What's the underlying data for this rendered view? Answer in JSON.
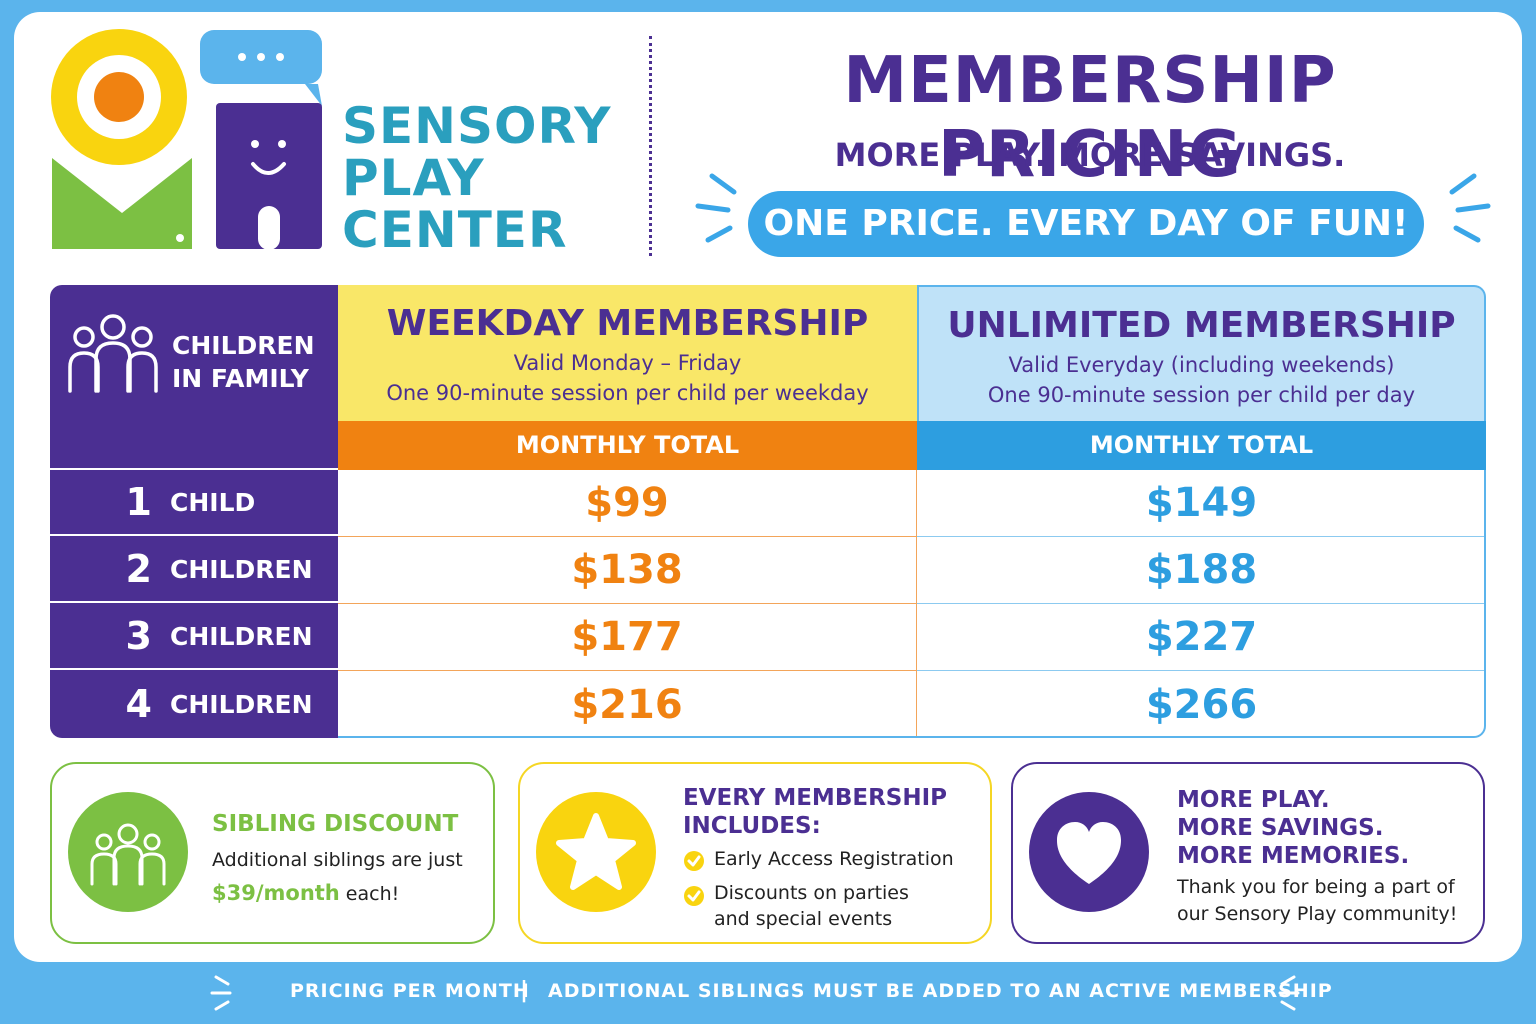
{
  "brand": {
    "line1": "SENSORY",
    "line2": "PLAY",
    "line3": "CENTER",
    "logo_icon": "sensory-play-logo-icon"
  },
  "header": {
    "title": "MEMBERSHIP PRICING",
    "subtitle": "MORE PLAY. MORE SAVINGS.",
    "pill": "ONE PRICE. EVERY DAY OF FUN!"
  },
  "table": {
    "left_header": {
      "label_line1": "CHILDREN",
      "label_line2": "IN FAMILY",
      "icon": "family-icon"
    },
    "weekday": {
      "title": "WEEKDAY MEMBERSHIP",
      "line1": "Valid Monday – Friday",
      "line2": "One 90-minute session per child per weekday",
      "bar": "MONTHLY TOTAL",
      "color": "#f08211"
    },
    "unlimited": {
      "title": "UNLIMITED MEMBERSHIP",
      "line1": "Valid Everyday (including weekends)",
      "line2": "One 90-minute session per child per day",
      "bar": "MONTHLY TOTAL",
      "color": "#2d9ee0"
    },
    "rows": [
      {
        "num": "1",
        "label": "CHILD",
        "weekday": "$99",
        "unlimited": "$149"
      },
      {
        "num": "2",
        "label": "CHILDREN",
        "weekday": "$138",
        "unlimited": "$188"
      },
      {
        "num": "3",
        "label": "CHILDREN",
        "weekday": "$177",
        "unlimited": "$227"
      },
      {
        "num": "4",
        "label": "CHILDREN",
        "weekday": "$216",
        "unlimited": "$266"
      }
    ]
  },
  "boxes": {
    "sibling": {
      "title": "SIBLING DISCOUNT",
      "text1": "Additional siblings are just",
      "price": "$39/month",
      "text2": " each!",
      "icon": "family-icon"
    },
    "includes": {
      "title_line1": "EVERY MEMBERSHIP",
      "title_line2": "INCLUDES:",
      "item1": "Early Access Registration",
      "item2_line1": "Discounts on parties",
      "item2_line2": "and special events",
      "icon": "star-icon"
    },
    "memories": {
      "line1": "MORE PLAY.",
      "line2": "MORE SAVINGS.",
      "line3": "MORE MEMORIES.",
      "text1": "Thank you for being a part of",
      "text2": "our Sensory Play community!",
      "icon": "heart-icon"
    }
  },
  "footer": {
    "left": "PRICING PER MONTH",
    "separator": "|",
    "right": "ADDITIONAL SIBLINGS MUST BE ADDED TO AN ACTIVE MEMBERSHIP"
  },
  "colors": {
    "purple": "#4b2f92",
    "teal": "#2a9fbe",
    "orange": "#f08211",
    "blue": "#2d9ee0",
    "yellow": "#f9e768",
    "green": "#7cc043"
  }
}
